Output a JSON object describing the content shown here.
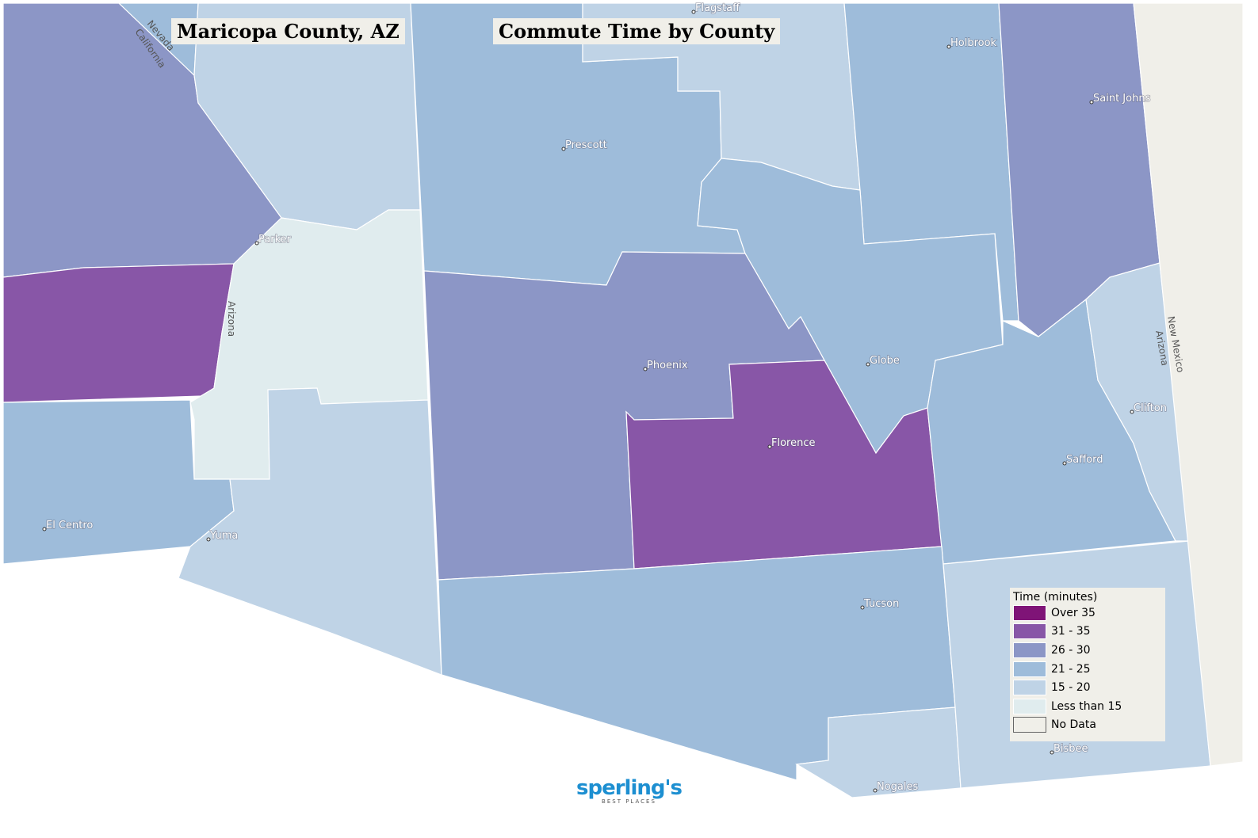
{
  "titles": {
    "county": "Maricopa County, AZ",
    "map": "Commute Time by County"
  },
  "legend": {
    "title": "Time (minutes)",
    "items": [
      {
        "label": "Over 35",
        "color": "#7f1477"
      },
      {
        "label": "31 - 35",
        "color": "#8856a7"
      },
      {
        "label": "26 - 30",
        "color": "#8c96c6"
      },
      {
        "label": "21 - 25",
        "color": "#9ebcda"
      },
      {
        "label": "15 - 20",
        "color": "#bfd3e6"
      },
      {
        "label": "Less than 15",
        "color": "#e0ecee"
      },
      {
        "label": "No Data",
        "color": "#f0efe9"
      }
    ]
  },
  "cities": [
    "Flagstaff",
    "Holbrook",
    "Saint Johns",
    "Prescott",
    "Parker",
    "Phoenix",
    "Globe",
    "Florence",
    "Clifton",
    "Safford",
    "El Centro",
    "Yuma",
    "Tucson",
    "Bisbee",
    "Nogales"
  ],
  "states": [
    "Nevada",
    "California",
    "Arizona",
    "New Mexico"
  ],
  "logo": {
    "word": "sperling's",
    "sub": "BEST PLACES"
  }
}
